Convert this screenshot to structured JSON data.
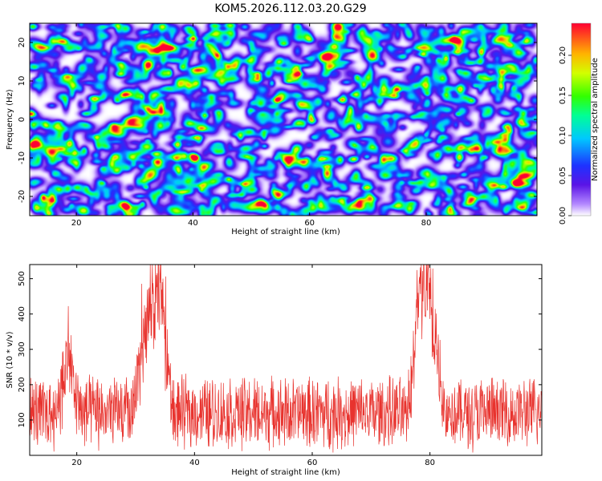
{
  "title": "KOM5.2026.112.03.20.G29",
  "chart_data": [
    {
      "type": "heatmap",
      "name": "spectrogram",
      "xlabel": "Height of straight line (km)",
      "ylabel": "Frequency (Hz)",
      "xlim": [
        12,
        99
      ],
      "ylim": [
        -25,
        25
      ],
      "xticks": [
        "20",
        "40",
        "60",
        "80"
      ],
      "yticks": [
        "-20",
        "-10",
        "0",
        "10",
        "20"
      ],
      "colorbar": {
        "label": "Normalized spectral amplitude",
        "range": [
          0.0,
          0.24
        ],
        "ticks": [
          "0.00",
          "0.05",
          "0.10",
          "0.15",
          "0.20"
        ],
        "colormap": "rainbow (white-violet-blue-cyan-green-yellow-red)"
      },
      "hotspots": [
        {
          "x": 32,
          "y": -7,
          "value": 0.24
        },
        {
          "x": 80,
          "y": -14,
          "value": 0.22
        },
        {
          "x": 28,
          "y": 14,
          "value": 0.13
        },
        {
          "x": 40,
          "y": 9.5,
          "value": 0.13
        },
        {
          "x": 79,
          "y": -5,
          "value": 0.14
        },
        {
          "x": 34,
          "y": -19,
          "value": 0.12
        },
        {
          "x": 30,
          "y": -2,
          "value": 0.1
        },
        {
          "x": 64,
          "y": 12,
          "value": 0.09
        },
        {
          "x": 92,
          "y": 17,
          "value": 0.08
        }
      ]
    },
    {
      "type": "line",
      "name": "snr",
      "series": [
        {
          "name": "SNR",
          "color": "#e8332e"
        }
      ],
      "xlabel": "Height of straight line (km)",
      "ylabel": "SNR (10 * v/v)",
      "xlim": [
        12,
        99
      ],
      "ylim": [
        0,
        540
      ],
      "xticks": [
        "20",
        "40",
        "60",
        "80"
      ],
      "yticks": [
        "100",
        "200",
        "300",
        "400",
        "500"
      ],
      "baseline_mean": 120,
      "peaks": [
        {
          "x": 18.5,
          "y": 340
        },
        {
          "x": 31.5,
          "y": 425
        },
        {
          "x": 33,
          "y": 460
        },
        {
          "x": 34.5,
          "y": 490
        },
        {
          "x": 78,
          "y": 460
        },
        {
          "x": 79.5,
          "y": 540
        },
        {
          "x": 81,
          "y": 340
        }
      ]
    }
  ]
}
